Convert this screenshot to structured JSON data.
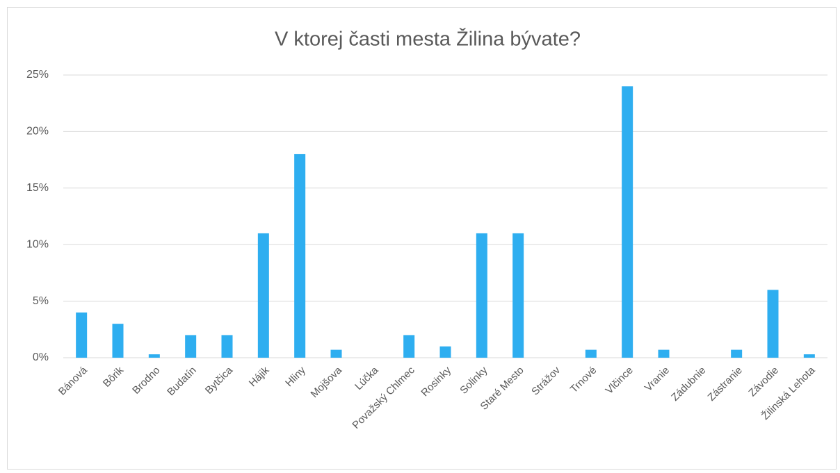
{
  "chart_data": {
    "type": "bar",
    "title": "V ktorej časti mesta Žilina bývate?",
    "categories": [
      "Bánová",
      "Bôrik",
      "Brodno",
      "Budatín",
      "Bytčica",
      "Hájik",
      "Hliny",
      "Mojšova",
      "Lúčka",
      "Považský Chlmec",
      "Rosinky",
      "Solinky",
      "Staré Mesto",
      "Strážov",
      "Trnové",
      "Vlčince",
      "Vranie",
      "Zádubnie",
      "Zástranie",
      "Závodie",
      "Žilinská Lehota"
    ],
    "values": [
      4,
      3,
      0.3,
      2,
      2,
      11,
      18,
      0.7,
      0,
      2,
      1,
      11,
      11,
      0,
      0.7,
      24,
      0.7,
      0,
      0.7,
      6,
      0.3
    ],
    "color": "#2eaef0",
    "ylim": [
      0,
      25
    ],
    "yticks": [
      {
        "value": 0,
        "label": "0%"
      },
      {
        "value": 5,
        "label": "5%"
      },
      {
        "value": 10,
        "label": "10%"
      },
      {
        "value": 15,
        "label": "15%"
      },
      {
        "value": 20,
        "label": "20%"
      },
      {
        "value": 25,
        "label": "25%"
      }
    ],
    "grid": true
  }
}
